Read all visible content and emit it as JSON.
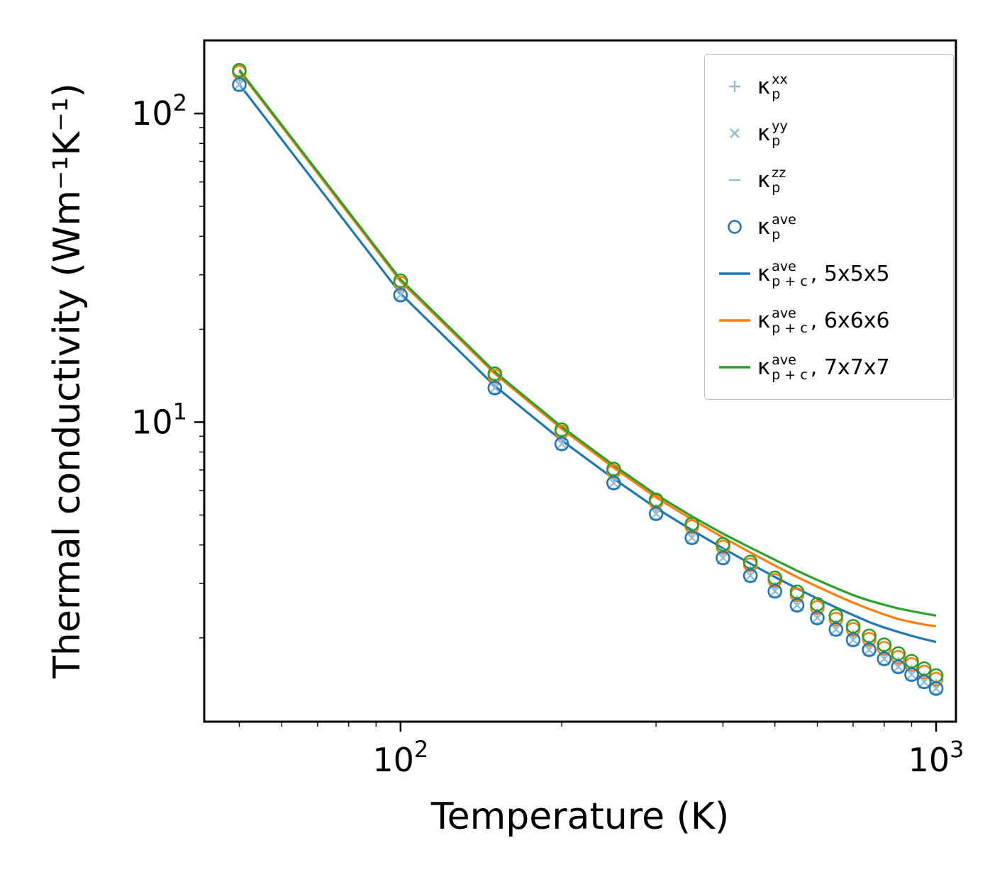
{
  "chart_data": {
    "type": "line+scatter",
    "title": "",
    "xlabel": "Temperature (K)",
    "ylabel": "Thermal conductivity (Wm⁻¹K⁻¹)",
    "x_scale": "log",
    "y_scale": "log",
    "xlim": [
      43,
      1089
    ],
    "ylim": [
      1.07,
      172.5
    ],
    "grid": false,
    "legend_position": "upper right",
    "x_major_ticks": [
      {
        "value": 100,
        "base": "10",
        "exp": "2"
      },
      {
        "value": 1000,
        "base": "10",
        "exp": "3"
      }
    ],
    "x_minor_ticks": [
      50,
      60,
      70,
      80,
      90,
      200,
      300,
      400,
      500,
      600,
      700,
      800,
      900
    ],
    "y_major_ticks": [
      {
        "value": 10,
        "base": "10",
        "exp": "1"
      },
      {
        "value": 100,
        "base": "10",
        "exp": "2"
      }
    ],
    "y_minor_ticks": [
      2,
      3,
      4,
      5,
      6,
      7,
      8,
      9,
      20,
      30,
      40,
      50,
      60,
      70,
      80,
      90
    ],
    "temperatures": [
      50,
      100,
      150,
      200,
      250,
      300,
      350,
      400,
      450,
      500,
      550,
      600,
      650,
      700,
      750,
      800,
      850,
      900,
      950,
      1000
    ],
    "series": [
      {
        "name": "kpc-ave-5x5x5-line",
        "type": "line",
        "color": "#1f77b4",
        "values": [
          124.3,
          26.1,
          13.1,
          8.72,
          6.56,
          5.27,
          4.47,
          3.9,
          3.48,
          3.15,
          2.89,
          2.68,
          2.51,
          2.37,
          2.25,
          2.16,
          2.09,
          2.03,
          1.98,
          1.94
        ]
      },
      {
        "name": "kpc-ave-6x6x6-line",
        "type": "line",
        "color": "#ff7f0e",
        "values": [
          137.0,
          28.6,
          14.35,
          9.5,
          7.12,
          5.7,
          4.84,
          4.23,
          3.78,
          3.43,
          3.15,
          2.93,
          2.75,
          2.6,
          2.48,
          2.38,
          2.3,
          2.25,
          2.21,
          2.18
        ]
      },
      {
        "name": "kpc-ave-7x7x7-line",
        "type": "line",
        "color": "#2ca02c",
        "values": [
          138.5,
          29.0,
          14.55,
          9.65,
          7.25,
          5.82,
          4.95,
          4.35,
          3.92,
          3.58,
          3.3,
          3.08,
          2.9,
          2.75,
          2.64,
          2.56,
          2.49,
          2.44,
          2.4,
          2.36
        ]
      },
      {
        "name": "kp-xx-markers",
        "type": "scatter",
        "marker": "plus",
        "color": "#8fbbd9",
        "values": [
          127.7,
          26.6,
          13.3,
          8.76,
          6.54,
          5.2,
          4.35,
          3.74,
          3.28,
          2.91,
          2.63,
          2.39,
          2.19,
          2.03,
          1.88,
          1.76,
          1.66,
          1.57,
          1.48,
          1.41
        ]
      },
      {
        "name": "kp-yy-markers",
        "type": "scatter",
        "marker": "x",
        "color": "#8fbbd9",
        "values": [
          124.0,
          25.8,
          12.9,
          8.5,
          6.35,
          5.05,
          4.22,
          3.63,
          3.18,
          2.83,
          2.55,
          2.32,
          2.13,
          1.97,
          1.83,
          1.71,
          1.61,
          1.52,
          1.44,
          1.37
        ]
      },
      {
        "name": "kp-zz-markers",
        "type": "scatter",
        "marker": "dash",
        "color": "#8fbbd9",
        "values": [
          119.0,
          24.8,
          12.4,
          8.16,
          6.1,
          4.85,
          4.05,
          3.48,
          3.05,
          2.72,
          2.45,
          2.23,
          2.04,
          1.89,
          1.76,
          1.64,
          1.55,
          1.46,
          1.38,
          1.32
        ]
      },
      {
        "name": "kp-ave-6x6x6-markers",
        "type": "scatter",
        "marker": "circle",
        "color": "#ff7f0e",
        "values": [
          136.0,
          28.2,
          14.1,
          9.3,
          6.92,
          5.5,
          4.59,
          3.94,
          3.45,
          3.07,
          2.76,
          2.51,
          2.3,
          2.13,
          1.98,
          1.85,
          1.73,
          1.64,
          1.55,
          1.47
        ]
      },
      {
        "name": "kp-ave-7x7x7-markers",
        "type": "scatter",
        "marker": "circle",
        "color": "#2ca02c",
        "values": [
          138.0,
          28.7,
          14.35,
          9.45,
          7.05,
          5.6,
          4.68,
          4.02,
          3.52,
          3.13,
          2.82,
          2.57,
          2.36,
          2.18,
          2.03,
          1.9,
          1.78,
          1.68,
          1.59,
          1.51
        ]
      },
      {
        "name": "kp-ave-markers",
        "type": "scatter",
        "marker": "circle",
        "color": "#1f77b4",
        "values": [
          124.0,
          25.8,
          12.9,
          8.5,
          6.35,
          5.05,
          4.22,
          3.63,
          3.18,
          2.83,
          2.55,
          2.32,
          2.13,
          1.97,
          1.83,
          1.71,
          1.61,
          1.52,
          1.44,
          1.37
        ]
      }
    ],
    "legend": [
      {
        "marker": "plus",
        "color": "#8fbbd9",
        "sym": "κ",
        "sup": "xx",
        "sub": "p",
        "suffix": ""
      },
      {
        "marker": "x",
        "color": "#8fbbd9",
        "sym": "κ",
        "sup": "yy",
        "sub": "p",
        "suffix": ""
      },
      {
        "marker": "dash",
        "color": "#8fbbd9",
        "sym": "κ",
        "sup": "zz",
        "sub": "p",
        "suffix": ""
      },
      {
        "marker": "circle",
        "color": "#1f77b4",
        "sym": "κ",
        "sup": "ave",
        "sub": "p",
        "suffix": ""
      },
      {
        "marker": "line",
        "color": "#1f77b4",
        "sym": "κ",
        "sup": "ave",
        "sub": "p + c",
        "suffix": ", 5x5x5"
      },
      {
        "marker": "line",
        "color": "#ff7f0e",
        "sym": "κ",
        "sup": "ave",
        "sub": "p + c",
        "suffix": ", 6x6x6"
      },
      {
        "marker": "line",
        "color": "#2ca02c",
        "sym": "κ",
        "sup": "ave",
        "sub": "p + c",
        "suffix": ", 7x7x7"
      }
    ],
    "colors": {
      "blue": "#1f77b4",
      "orange": "#ff7f0e",
      "green": "#2ca02c",
      "light_blue": "#8fbbd9",
      "axis": "#000000",
      "legend_border": "#bdbdbd"
    }
  }
}
